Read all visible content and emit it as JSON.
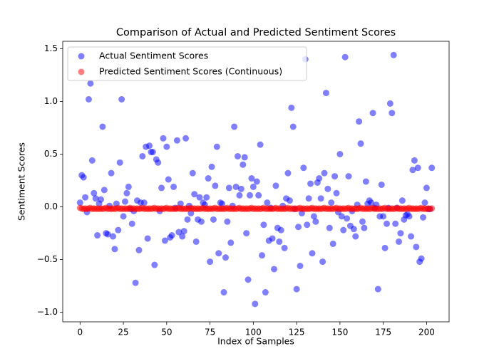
{
  "chart_data": {
    "type": "scatter",
    "title": "Comparison of Actual and Predicted Sentiment Scores",
    "x_label": "Index of Samples",
    "y_label": "Sentiment Scores",
    "legend": "upper left",
    "grid": false,
    "xlim": [
      -10,
      213
    ],
    "ylim": [
      -1.09,
      1.57
    ],
    "xticks": [
      0,
      25,
      50,
      75,
      100,
      125,
      150,
      175,
      200
    ],
    "yticks": [
      {
        "value": -1,
        "label": "−1.0"
      },
      {
        "value": -0.5,
        "label": "−0.5"
      },
      {
        "value": 0,
        "label": "0.0"
      },
      0.5,
      {
        "value": 1,
        "label": "1.0"
      },
      1.5
    ],
    "x": [
      0,
      1,
      2,
      3,
      4,
      5,
      6,
      7,
      8,
      9,
      10,
      11,
      12,
      13,
      14,
      15,
      16,
      17,
      18,
      19,
      20,
      21,
      22,
      23,
      24,
      25,
      26,
      27,
      28,
      29,
      30,
      31,
      32,
      33,
      34,
      35,
      36,
      37,
      38,
      39,
      40,
      41,
      42,
      43,
      44,
      45,
      46,
      47,
      48,
      49,
      50,
      51,
      52,
      53,
      54,
      55,
      56,
      57,
      58,
      59,
      60,
      61,
      62,
      63,
      64,
      65,
      66,
      67,
      68,
      69,
      70,
      71,
      72,
      73,
      74,
      75,
      76,
      77,
      78,
      79,
      80,
      81,
      82,
      83,
      84,
      85,
      86,
      87,
      88,
      89,
      90,
      91,
      92,
      93,
      94,
      95,
      96,
      97,
      98,
      99,
      100,
      101,
      102,
      103,
      104,
      105,
      106,
      107,
      108,
      109,
      110,
      111,
      112,
      113,
      114,
      115,
      116,
      117,
      118,
      119,
      120,
      121,
      122,
      123,
      124,
      125,
      126,
      127,
      128,
      129,
      130,
      131,
      132,
      133,
      134,
      135,
      136,
      137,
      138,
      139,
      140,
      141,
      142,
      143,
      144,
      145,
      146,
      147,
      148,
      149,
      150,
      151,
      152,
      153,
      154,
      155,
      156,
      157,
      158,
      159,
      160,
      161,
      162,
      163,
      164,
      165,
      166,
      167,
      168,
      169,
      170,
      171,
      172,
      173,
      174,
      175,
      176,
      177,
      178,
      179,
      180,
      181,
      182,
      183,
      184,
      185,
      186,
      187,
      188,
      189,
      190,
      191,
      192,
      193,
      194,
      195,
      196,
      197,
      198,
      199,
      200,
      201,
      202,
      203
    ],
    "series": [
      {
        "name": "Actual Sentiment Scores",
        "color": "#0000ff",
        "opacity": 0.5,
        "values": [
          0.04,
          0.3,
          0.28,
          0.09,
          -0.05,
          1.02,
          1.17,
          0.44,
          0.13,
          0.08,
          -0.27,
          0.03,
          0.07,
          0.76,
          0.16,
          -0.25,
          -0.26,
          0.01,
          0.32,
          -0.28,
          -0.4,
          0.03,
          -0.22,
          0.42,
          1.02,
          -0.09,
          0.05,
          0.13,
          0.19,
          -0.02,
          -0.16,
          -0.04,
          -0.72,
          0.06,
          -0.41,
          0.04,
          0.48,
          0.04,
          0.57,
          -0.3,
          0.58,
          0.52,
          0.52,
          -0.55,
          0.45,
          0.42,
          -0.04,
          0.18,
          0.65,
          -0.32,
          0.57,
          0.26,
          -0.29,
          -0.27,
          0.19,
          -0.01,
          0.63,
          -0.24,
          0.03,
          -0.28,
          -0.23,
          0.65,
          -0.12,
          0.01,
          -0.06,
          0.32,
          0.12,
          -0.33,
          -0.12,
          0.09,
          -0.14,
          0.04,
          0.02,
          0.09,
          0.27,
          -0.52,
          0.38,
          -0.12,
          0.2,
          0.57,
          -0.44,
          0.04,
          0.03,
          -0.81,
          -0.48,
          -0.14,
          0.18,
          -0.34,
          0.01,
          0.76,
          0.19,
          0.48,
          0.11,
          0.17,
          0.4,
          0.47,
          -0.25,
          -0.69,
          0.11,
          0.27,
          0.19,
          -0.92,
          0.24,
          0.11,
          0.59,
          -0.46,
          -0.17,
          -0.81,
          0.04,
          -0.32,
          -0.01,
          -0.3,
          -0.59,
          0.2,
          -0.2,
          -0.33,
          -0.22,
          0.01,
          -0.39,
          0.08,
          0.32,
          0.06,
          0.94,
          0.76,
          -0.02,
          -0.78,
          -0.19,
          -0.56,
          -0.06,
          0.37,
          1.4,
          -0.17,
          0.08,
          0.22,
          -0.44,
          -0.09,
          -0.14,
          0.23,
          0.27,
          0.08,
          -0.52,
          0.32,
          1.08,
          0.17,
          -0.2,
          0.04,
          -0.35,
          0.29,
          0.13,
          -0.05,
          0.5,
          -0.09,
          -0.22,
          1.42,
          -0.11,
          0.29,
          -0.18,
          -0.04,
          -0.21,
          -0.28,
          0.02,
          0.81,
          0.6,
          -0.14,
          -0.2,
          0.24,
          0.03,
          0.06,
          0.04,
          0.89,
          -0.01,
          0.02,
          -0.78,
          -0.09,
          0.21,
          -0.09,
          -0.39,
          -0.16,
          -0.01,
          0.98,
          0.89,
          1.44,
          -0.16,
          -0.01,
          -0.33,
          -0.25,
          0.06,
          -0.12,
          -0.08,
          -0.07,
          -0.09,
          -0.28,
          0.35,
          0.44,
          -0.38,
          0.37,
          -0.52,
          -0.49,
          -0.1,
          0.04,
          0.18,
          -0.02,
          -0.02,
          0.37
        ]
      },
      {
        "name": "Predicted Sentiment Scores (Continuous)",
        "color": "#ff0000",
        "opacity": 0.5,
        "values": [
          -0.01,
          -0.015,
          -0.02,
          -0.015,
          -0.02,
          -0.015,
          -0.01,
          -0.02,
          -0.015,
          -0.02,
          -0.015,
          -0.02,
          -0.015,
          -0.02,
          -0.015,
          -0.01,
          -0.02,
          -0.015,
          -0.02,
          -0.015,
          -0.02,
          -0.015,
          -0.01,
          -0.02,
          -0.015,
          -0.02,
          -0.015,
          -0.02,
          -0.015,
          -0.01,
          -0.02,
          -0.015,
          -0.02,
          -0.015,
          -0.02,
          -0.015,
          -0.01,
          -0.02,
          -0.015,
          -0.02,
          -0.015,
          -0.02,
          -0.015,
          -0.01,
          -0.02,
          -0.015,
          -0.02,
          -0.015,
          -0.02,
          -0.015,
          -0.01,
          -0.02,
          -0.015,
          -0.02,
          -0.015,
          -0.02,
          -0.015,
          -0.01,
          -0.02,
          -0.015,
          -0.02,
          -0.015,
          -0.02,
          -0.015,
          -0.01,
          -0.02,
          -0.015,
          -0.02,
          -0.015,
          -0.02,
          -0.015,
          -0.01,
          -0.02,
          -0.015,
          -0.02,
          -0.015,
          -0.02,
          -0.015,
          -0.01,
          -0.02,
          -0.015,
          -0.02,
          -0.015,
          -0.02,
          -0.015,
          -0.01,
          -0.02,
          -0.015,
          -0.02,
          -0.015,
          -0.02,
          -0.015,
          -0.01,
          -0.02,
          -0.015,
          -0.02,
          -0.015,
          -0.02,
          -0.015,
          -0.01,
          -0.02,
          -0.015,
          -0.02,
          -0.015,
          -0.02,
          -0.015,
          -0.01,
          -0.02,
          -0.015,
          -0.02,
          -0.015,
          -0.02,
          -0.015,
          -0.01,
          -0.02,
          -0.015,
          -0.02,
          -0.015,
          -0.02,
          -0.015,
          -0.01,
          -0.02,
          -0.015,
          -0.02,
          -0.015,
          -0.02,
          -0.015,
          -0.01,
          -0.02,
          -0.015,
          -0.02,
          -0.015,
          -0.02,
          -0.015,
          -0.01,
          -0.02,
          -0.015,
          -0.02,
          -0.015,
          -0.02,
          -0.015,
          -0.01,
          -0.02,
          -0.015,
          -0.02,
          -0.015,
          -0.02,
          -0.015,
          -0.01,
          -0.02,
          -0.015,
          -0.02,
          -0.015,
          -0.02,
          -0.015,
          -0.01,
          -0.02,
          -0.015,
          -0.02,
          -0.015,
          -0.02,
          -0.015,
          -0.01,
          -0.02,
          -0.015,
          -0.02,
          -0.015,
          -0.02,
          -0.015,
          -0.01,
          -0.02,
          -0.015,
          -0.02,
          -0.015,
          -0.02,
          -0.015,
          -0.01,
          -0.02,
          -0.015,
          -0.02,
          -0.015,
          -0.02,
          -0.015,
          -0.01,
          -0.02,
          -0.015,
          -0.02,
          -0.015,
          -0.02,
          -0.015,
          -0.01,
          -0.02,
          -0.015,
          -0.02,
          -0.015,
          -0.02,
          -0.015,
          -0.01,
          -0.02,
          -0.015,
          -0.02,
          -0.015,
          -0.02,
          -0.015
        ]
      }
    ]
  }
}
